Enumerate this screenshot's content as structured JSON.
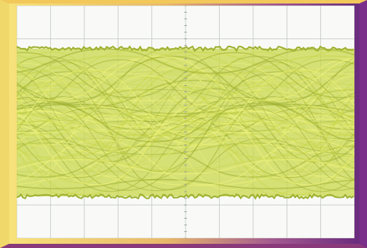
{
  "display": {
    "grid": {
      "divisions_x": 10,
      "divisions_y": 7,
      "minor_ticks_per_division": 5
    },
    "trace": {
      "type": "eye-diagram",
      "color": "#c8d74a",
      "highlight_color": "#eef27a",
      "dark_color": "#9fb031"
    },
    "colors": {
      "screen_background": "#f9faf7",
      "grid_line": "#c7cdc6",
      "frame_left": "#f0d86a",
      "frame_right": "#7a2f8a"
    }
  }
}
